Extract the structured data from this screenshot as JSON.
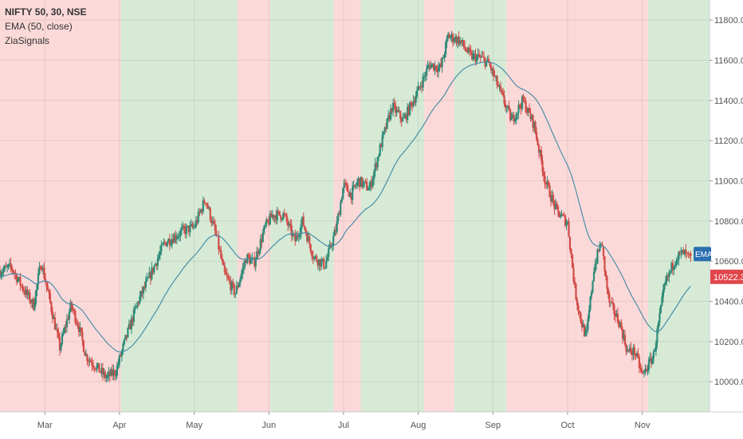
{
  "header": {
    "symbol": "NIFTY 50, 30, NSE",
    "indicator_ema": "EMA (50, close)",
    "indicator_signals": "ZiaSignals"
  },
  "price_tag": {
    "value": "10522.30",
    "color": "#e0464b"
  },
  "ema_tag": {
    "label": "EMA",
    "color": "#2a6fb0"
  },
  "chart_data": {
    "type": "candlestick",
    "title": "NIFTY 50, 30, NSE",
    "y_axis": {
      "position": "right",
      "range": [
        9850,
        11900
      ],
      "ticks": [
        10000,
        10200,
        10400,
        10600,
        10800,
        11000,
        11200,
        11400,
        11600,
        11800
      ],
      "tick_labels": [
        "10000.00",
        "10200.00",
        "10400.00",
        "10600.00",
        "10800.00",
        "11000.00",
        "11200.00",
        "11400.00",
        "11600.00",
        "11800.00"
      ]
    },
    "x_axis": {
      "range": [
        0,
        9.5
      ],
      "ticks": [
        0.6,
        1.6,
        2.6,
        3.6,
        4.6,
        5.6,
        6.6,
        7.6,
        8.6
      ],
      "tick_labels": [
        "Mar",
        "Apr",
        "May",
        "Jun",
        "Jul",
        "Aug",
        "Sep",
        "Oct",
        "Nov"
      ]
    },
    "grid": true,
    "bands": [
      {
        "from": 0.0,
        "to": 1.62,
        "signal": "sell"
      },
      {
        "from": 1.62,
        "to": 3.18,
        "signal": "buy"
      },
      {
        "from": 3.18,
        "to": 3.62,
        "signal": "sell"
      },
      {
        "from": 3.62,
        "to": 4.47,
        "signal": "buy"
      },
      {
        "from": 4.47,
        "to": 4.83,
        "signal": "sell"
      },
      {
        "from": 4.83,
        "to": 5.68,
        "signal": "buy"
      },
      {
        "from": 5.68,
        "to": 6.08,
        "signal": "sell"
      },
      {
        "from": 6.08,
        "to": 6.78,
        "signal": "buy"
      },
      {
        "from": 6.78,
        "to": 8.68,
        "signal": "sell"
      },
      {
        "from": 8.68,
        "to": 9.5,
        "signal": "buy"
      }
    ],
    "band_colors": {
      "buy": "#d6ead6",
      "sell": "#fcd9d9"
    },
    "price_path": {
      "x": [
        0.0,
        0.15,
        0.3,
        0.45,
        0.55,
        0.65,
        0.8,
        0.95,
        1.05,
        1.15,
        1.3,
        1.42,
        1.55,
        1.68,
        1.85,
        2.0,
        2.2,
        2.45,
        2.6,
        2.75,
        2.9,
        3.0,
        3.15,
        3.3,
        3.4,
        3.55,
        3.65,
        3.8,
        3.95,
        4.05,
        4.2,
        4.35,
        4.5,
        4.6,
        4.7,
        4.8,
        4.95,
        5.1,
        5.25,
        5.4,
        5.6,
        5.75,
        5.9,
        6.0,
        6.15,
        6.3,
        6.45,
        6.55,
        6.7,
        6.85,
        7.0,
        7.15,
        7.3,
        7.45,
        7.6,
        7.7,
        7.78,
        7.85,
        7.95,
        8.05,
        8.15,
        8.3,
        8.4,
        8.5,
        8.6,
        8.75,
        8.9,
        9.05,
        9.15,
        9.25
      ],
      "y": [
        10550,
        10570,
        10470,
        10380,
        10600,
        10430,
        10170,
        10380,
        10280,
        10130,
        10070,
        10020,
        10050,
        10210,
        10400,
        10520,
        10690,
        10750,
        10770,
        10910,
        10720,
        10540,
        10440,
        10620,
        10590,
        10770,
        10830,
        10830,
        10700,
        10800,
        10620,
        10580,
        10760,
        10980,
        10930,
        11000,
        10960,
        11180,
        11370,
        11300,
        11450,
        11580,
        11560,
        11720,
        11700,
        11620,
        11610,
        11580,
        11440,
        11300,
        11400,
        11280,
        11000,
        10850,
        10790,
        10450,
        10300,
        10220,
        10560,
        10700,
        10400,
        10290,
        10150,
        10150,
        10030,
        10130,
        10480,
        10620,
        10640,
        10610
      ]
    },
    "ema": {
      "period": 50,
      "source": "close",
      "color": "#4a8fa8"
    },
    "last_price": 10522.3
  },
  "colors": {
    "up": "#2e8b78",
    "down": "#d24d49",
    "grid": "#e7e7e7",
    "axis_text": "#555555"
  }
}
